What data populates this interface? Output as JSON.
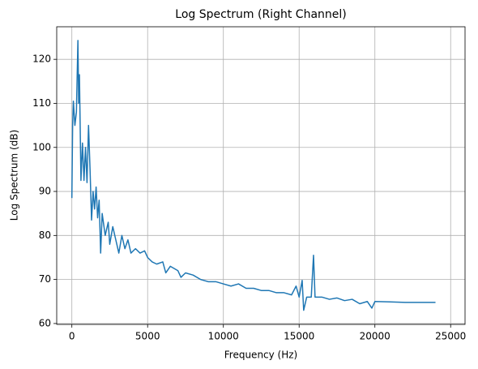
{
  "chart_data": {
    "type": "line",
    "title": "Log Spectrum (Right Channel)",
    "x_label": "Frequency (Hz)",
    "y_label": "Log Spectrum (dB)",
    "x": [
      0,
      50,
      100,
      200,
      300,
      400,
      450,
      500,
      600,
      700,
      800,
      900,
      1000,
      1100,
      1200,
      1300,
      1400,
      1500,
      1600,
      1700,
      1800,
      1900,
      2000,
      2200,
      2400,
      2500,
      2700,
      2900,
      3100,
      3300,
      3500,
      3700,
      3900,
      4200,
      4500,
      4800,
      5000,
      5300,
      5600,
      6000,
      6200,
      6500,
      7000,
      7200,
      7500,
      8000,
      8500,
      9000,
      9500,
      10000,
      10500,
      11000,
      11500,
      12000,
      12500,
      13000,
      13500,
      14000,
      14500,
      14800,
      15000,
      15200,
      15300,
      15500,
      15800,
      15950,
      16050,
      16500,
      17000,
      17500,
      18000,
      18500,
      19000,
      19500,
      19800,
      20000,
      21000,
      22000,
      23000,
      24000
    ],
    "series": [
      {
        "name": "Right Channel",
        "color": "#1f77b4",
        "values": [
          88.5,
          105,
          110.5,
          105,
          108,
          124.3,
          110,
          116.5,
          92.5,
          101,
          92.5,
          100,
          92,
          105,
          95,
          83.5,
          90,
          86,
          91,
          84,
          88,
          76,
          85,
          80,
          83,
          78,
          82,
          79,
          76,
          80,
          77,
          79,
          76,
          77,
          76,
          76.5,
          75,
          74,
          73.5,
          74,
          71.5,
          73,
          72,
          70.5,
          71.5,
          71,
          70,
          69.5,
          69.5,
          69,
          68.5,
          69,
          68,
          68,
          67.5,
          67.5,
          67,
          67,
          66.5,
          68.5,
          66,
          69.8,
          63,
          66,
          66,
          75.5,
          66,
          66,
          65.5,
          65.8,
          65.2,
          65.5,
          64.5,
          65,
          63.5,
          65,
          64.9,
          64.8,
          64.8,
          64.8
        ]
      }
    ],
    "xlim": [
      -1000,
      25950
    ],
    "ylim": [
      59.8,
      127.4
    ],
    "xticks": [
      0,
      5000,
      10000,
      15000,
      20000,
      25000
    ],
    "yticks": [
      60,
      70,
      80,
      90,
      100,
      110,
      120
    ],
    "grid": true
  }
}
